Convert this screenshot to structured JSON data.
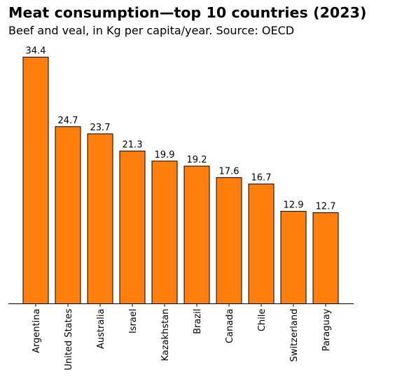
{
  "chart_data": {
    "type": "bar",
    "title": "Meat consumption—top 10 countries (2023)",
    "subtitle": "Beef and veal, in Kg per capita/year. Source: OECD",
    "categories": [
      "Argentina",
      "United States",
      "Australia",
      "Israel",
      "Kazakhstan",
      "Brazil",
      "Canada",
      "Chile",
      "Switzerland",
      "Paraguay"
    ],
    "values": [
      34.4,
      24.7,
      23.7,
      21.3,
      19.9,
      19.2,
      17.6,
      16.7,
      12.9,
      12.7
    ],
    "value_labels": [
      "34.4",
      "24.7",
      "23.7",
      "21.3",
      "19.9",
      "19.2",
      "17.6",
      "16.7",
      "12.9",
      "12.7"
    ],
    "bar_color": "#ff7f0e",
    "edge_color": "#000000",
    "ylim": [
      0,
      36.12
    ],
    "grid": false,
    "show_y_axis": false
  }
}
